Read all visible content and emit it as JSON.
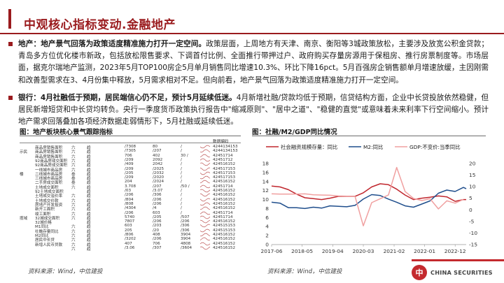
{
  "header": {
    "title": "中观核心指标变动.金融地产"
  },
  "paragraph1": {
    "lead": "地产：地产景气回落为政策适度精准施力打开一定空间。",
    "body": "政策层面，上周地方有天津、南京、衡阳等3城政策放松，主要涉及放宽公积金贷款；青岛多方位优化楼市新政，包括放松限售要求、下调首付比例、全面推行带押过户、政府购买存量房源用于保租房、推行房票制度等。市场层面，据克尔瑞地产监测，2023年5月TOP100房企5月单月销售同比增速10.3%、环比下降16pct。5月百强房企销售额单月增速放缓，主因刚需和改善型需求在3、4月份集中释放，5月需求相对不足。但向前看，地产景气回落为政策适度精准施力打开一定空间。"
  },
  "paragraph2": {
    "lead": "银行：4月社融低于预期，居民端信心仍不足，预计5月延续低迷。",
    "body": "4月新增社融/贷款均低于预期，信贷结构方面，企业中长贷投放依然稳健，但居民新增短贷和中长贷均转负。央行一季度货币政策执行报告中\"缩减原则\"、\"居中之道\"、\"稳健的直觉\"或意味着未来利率下行空间缩小。预计地产需求回落叠加各项经济数据走弱情形下，5月社融或延续低迷。"
  },
  "left_figure": {
    "title": "图：地产板块核心景气跟踪指标",
    "source": "资料来源：Wind，中信建投",
    "columns": [
      "",
      "",
      "",
      "",
      "",
      "",
      "",
      "",
      "数据编码"
    ],
    "groups": [
      "示民",
      "楼",
      "",
      "",
      "揽域"
    ],
    "rows": [
      {
        "c1": "",
        "c2": "商品房销售面积",
        "c3": "六",
        "c4": "趋",
        "c5": "/7308",
        "c6": "80",
        "c7": "/",
        "code": "4244134153"
      },
      {
        "c1": "示民",
        "c2": "商品房销售面积",
        "c3": "六",
        "c4": "趋",
        "c5": "/7305",
        "c6": "/207",
        "c7": "/",
        "code": "4244134153"
      },
      {
        "c1": "",
        "c2": "商品房销售面积",
        "c3": "六",
        "c4": "趋",
        "c5": "706",
        "c6": "402",
        "c7": "30 /",
        "code": "42451714"
      },
      {
        "c1": "",
        "c2": "92商品房成交面积",
        "c3": "六",
        "c4": "趋",
        "c5": "/209",
        "c6": "2092",
        "c7": "/",
        "code": "42451712"
      },
      {
        "c1": "",
        "c2": "92商品房成交面积",
        "c3": "六",
        "c4": "趋",
        "c5": "/409",
        "c6": "2042",
        "c7": "/",
        "code": "424516152"
      },
      {
        "c1": "",
        "c2": "一线城市商品房",
        "c3": "六",
        "c4": "趋",
        "c5": "/209",
        "c6": "/2025",
        "c7": "/",
        "code": "424517153"
      },
      {
        "c1": "楼",
        "c2": "二线城市商品房",
        "c3": "叁",
        "c4": "趋",
        "c5": "/205",
        "c6": "/2032",
        "c7": "/",
        "code": "424517153"
      },
      {
        "c1": "",
        "c2": "三线城市商品房",
        "c3": "叁",
        "c4": "趋",
        "c5": "/209",
        "c6": "/2020",
        "c7": "/",
        "code": "424517153"
      },
      {
        "c1": "",
        "c2": "二手房成交面积",
        "c3": "叁",
        "c4": "趋",
        "c5": "204",
        "c6": "/2024",
        "c7": "/",
        "code": "424516152"
      },
      {
        "c1": "",
        "c2": "土地成交面积",
        "c3": "六",
        "c4": "趋",
        "c5": "3.708",
        "c6": "/207",
        "c7": "/50 /",
        "code": "42451714"
      },
      {
        "c1": "",
        "c2": "92土地成交面积",
        "c3": "",
        "c4": "趋",
        "c5": "/03",
        "c6": "/3.07",
        "c7": "/",
        "code": "424516152"
      },
      {
        "c1": "",
        "c2": "土地成交溢价率",
        "c3": "六",
        "c4": "趋",
        "c5": "/206",
        "c6": "/306",
        "c7": "/",
        "code": "424516152"
      },
      {
        "c1": "",
        "c2": "土地成交价款",
        "c3": "六",
        "c4": "趋",
        "c5": "/804",
        "c6": "/206",
        "c7": "/",
        "code": "424516152"
      },
      {
        "c1": "",
        "c2": "房地产开发投资",
        "c3": "六",
        "c4": "趋",
        "c5": "/808",
        "c6": "/206",
        "c7": "/",
        "code": "424516152"
      },
      {
        "c1": "",
        "c2": "新开工面积",
        "c3": "六",
        "c4": "趋",
        "c5": "/4304",
        "c6": "/4",
        "c7": "/",
        "code": "424516152"
      },
      {
        "c1": "",
        "c2": "竣工面积",
        "c3": "六",
        "c4": "趋",
        "c5": "/206",
        "c6": "603",
        "c7": "/",
        "code": "42451714"
      },
      {
        "c1": "揽域",
        "c2": "32城成交面积",
        "c3": "六",
        "c4": "趋",
        "c5": "5740",
        "c6": "/205",
        "c7": "/507",
        "code": "42451714"
      },
      {
        "c1": "",
        "c2": "32城价格",
        "c3": "",
        "c4": "趋",
        "c5": "7807",
        "c6": "/206",
        "c7": "/206",
        "code": "424516152"
      },
      {
        "c1": "",
        "c2": "M1同比",
        "c3": "六",
        "c4": "趋",
        "c5": "603",
        "c6": "/203",
        "c7": "/306",
        "code": "424515153"
      },
      {
        "c1": "",
        "c2": "社融存量同比",
        "c3": "六",
        "c4": "趋",
        "c5": "205",
        "c6": "/20",
        "c7": "/306",
        "code": "424515153"
      },
      {
        "c1": "",
        "c2": "M2同比",
        "c3": "六",
        "c4": "趋",
        "c5": "/806",
        "c6": "408",
        "c7": "3904",
        "code": "424516152"
      },
      {
        "c1": "",
        "c2": "居民中长贷",
        "c3": "六",
        "c4": "趋",
        "c5": "/3202",
        "c6": "/206",
        "c7": "3904",
        "code": "424516152"
      },
      {
        "c1": "",
        "c2": "新增人民币贷款",
        "c3": "六",
        "c4": "趋",
        "c5": "407",
        "c6": "706",
        "c7": "4808",
        "code": "424516152"
      },
      {
        "c1": "",
        "c2": "",
        "c3": "六",
        "c4": "趋",
        "c5": "/3.06",
        "c6": "/307",
        "c7": "/3604",
        "code": "424516152"
      }
    ]
  },
  "right_figure": {
    "title": "图：社融/M2/GDP同比情况",
    "source": "资料来源：Wind，中信建投"
  },
  "chart_data": {
    "type": "line",
    "title": "",
    "legend_position": "top",
    "x_ticks": [
      "2017-06",
      "2018-05",
      "2019-04",
      "2020-03",
      "2021-02",
      "2022-01",
      "2022-12"
    ],
    "y_left": {
      "min": 0,
      "max": 18,
      "ticks": [
        0,
        2,
        4,
        6,
        8,
        10,
        12,
        14,
        16,
        18
      ]
    },
    "y_right": {
      "min": -15,
      "max": 20,
      "ticks": [
        -15,
        -10,
        -5,
        0,
        5,
        10,
        15,
        20
      ]
    },
    "grid": false,
    "series": [
      {
        "name": "社会融资规模存量：同比",
        "axis": "left",
        "color": "#c0262d",
        "dates": [
          "2017-06",
          "2017-09",
          "2017-12",
          "2018-03",
          "2018-06",
          "2018-09",
          "2018-12",
          "2019-03",
          "2019-06",
          "2019-09",
          "2019-12",
          "2020-03",
          "2020-06",
          "2020-09",
          "2020-12",
          "2021-03",
          "2021-06",
          "2021-09",
          "2021-12",
          "2022-03",
          "2022-06",
          "2022-09",
          "2022-12",
          "2023-03",
          "2023-04"
        ],
        "values": [
          13.0,
          12.8,
          12.2,
          11.2,
          10.4,
          10.2,
          10.0,
          10.3,
          10.7,
          10.7,
          10.7,
          11.5,
          12.8,
          13.5,
          13.3,
          12.3,
          11.0,
          10.0,
          10.3,
          10.5,
          10.8,
          10.6,
          9.6,
          10.0,
          10.0
        ]
      },
      {
        "name": "M2:同比",
        "axis": "left",
        "color": "#1f4e8c",
        "dates": [
          "2017-06",
          "2017-09",
          "2017-12",
          "2018-03",
          "2018-06",
          "2018-09",
          "2018-12",
          "2019-03",
          "2019-06",
          "2019-09",
          "2019-12",
          "2020-03",
          "2020-06",
          "2020-09",
          "2020-12",
          "2021-03",
          "2021-06",
          "2021-09",
          "2021-12",
          "2022-03",
          "2022-06",
          "2022-09",
          "2022-12",
          "2023-03",
          "2023-04"
        ],
        "values": [
          9.4,
          9.2,
          8.2,
          8.2,
          8.0,
          8.3,
          8.1,
          8.6,
          8.5,
          8.4,
          8.7,
          10.1,
          11.1,
          10.9,
          10.1,
          9.4,
          8.6,
          8.3,
          9.0,
          9.7,
          11.4,
          12.1,
          11.8,
          12.7,
          12.4
        ]
      },
      {
        "name": "GDP:不变价:当季同比",
        "axis": "right",
        "color": "#f0a0a0",
        "dates": [
          "2017-06",
          "2017-09",
          "2017-12",
          "2018-03",
          "2018-06",
          "2018-09",
          "2018-12",
          "2019-03",
          "2019-06",
          "2019-09",
          "2019-12",
          "2020-03",
          "2020-06",
          "2020-09",
          "2020-12",
          "2021-03",
          "2021-06",
          "2021-09",
          "2021-12",
          "2022-03",
          "2022-06",
          "2022-09",
          "2022-12",
          "2023-03"
        ],
        "values": [
          6.9,
          6.8,
          6.8,
          6.8,
          6.9,
          6.5,
          6.4,
          6.3,
          6.0,
          5.9,
          5.8,
          -6.9,
          3.1,
          4.8,
          6.4,
          18.3,
          7.9,
          4.9,
          4.0,
          4.8,
          0.4,
          3.9,
          2.9,
          4.5
        ]
      }
    ]
  },
  "footer": {
    "logo_mark": "中",
    "logo_text": "CHINA SECURITIES"
  }
}
